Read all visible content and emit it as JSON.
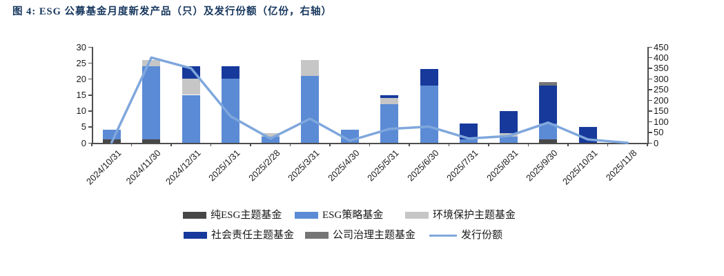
{
  "header": {
    "title": "图 4: ESG 公募基金月度新发产品（只）及发行份额（亿份，右轴）"
  },
  "chart_data": {
    "type": "bar",
    "subtype": "stacked-bars-with-line-overlay",
    "categories": [
      "2024/10/31",
      "2024/11/30",
      "2024/12/31",
      "2025/1/31",
      "2025/2/28",
      "2025/3/31",
      "2025/4/30",
      "2025/5/31",
      "2025/6/30",
      "2025/7/31",
      "2025/8/31",
      "2025/9/30",
      "2025/10/31",
      "2025/11/8"
    ],
    "series": [
      {
        "name": "纯ESG主题基金",
        "type": "bar",
        "axis": "left",
        "color": "#474747",
        "values": [
          1,
          1,
          0,
          0,
          0,
          0,
          0,
          0,
          0,
          0,
          0,
          1,
          0,
          0
        ]
      },
      {
        "name": "ESG策略基金",
        "type": "bar",
        "axis": "left",
        "color": "#5B8BD5",
        "values": [
          3,
          23,
          15,
          20,
          2,
          21,
          4,
          12,
          18,
          1,
          2,
          5,
          0,
          0
        ]
      },
      {
        "name": "环境保护主题基金",
        "type": "bar",
        "axis": "left",
        "color": "#C6C6C6",
        "values": [
          0,
          2,
          5,
          0,
          1,
          5,
          0,
          2,
          0,
          0,
          1,
          0,
          0,
          0
        ]
      },
      {
        "name": "社会责任主题基金",
        "type": "bar",
        "axis": "left",
        "color": "#16399B",
        "values": [
          0,
          0,
          4,
          4,
          0,
          0,
          0,
          1,
          5,
          5,
          7,
          12,
          5,
          0
        ]
      },
      {
        "name": "公司治理主题基金",
        "type": "bar",
        "axis": "left",
        "color": "#757575",
        "values": [
          0,
          0,
          0,
          0,
          0,
          0,
          0,
          0,
          0,
          0,
          0,
          1,
          0,
          0
        ]
      }
    ],
    "line_series": {
      "name": "发行份额",
      "type": "line",
      "axis": "right",
      "color": "#7FA7DC",
      "values": [
        2,
        400,
        350,
        124,
        20,
        113,
        10,
        65,
        76,
        20,
        32,
        95,
        16,
        0
      ]
    },
    "left_axis": {
      "min": 0,
      "max": 30,
      "step": 5,
      "ticks": [
        "0",
        "5",
        "10",
        "15",
        "20",
        "25",
        "30"
      ]
    },
    "right_axis": {
      "min": 0,
      "max": 450,
      "step": 50,
      "ticks": [
        "0",
        "50",
        "100",
        "150",
        "200",
        "250",
        "300",
        "350",
        "400",
        "450"
      ]
    },
    "grid": false,
    "legend_position": "bottom",
    "legend_rows": [
      [
        "纯ESG主题基金",
        "ESG策略基金",
        "环境保护主题基金"
      ],
      [
        "社会责任主题基金",
        "公司治理主题基金",
        "发行份额"
      ]
    ]
  },
  "colors": {
    "title": "#17375E",
    "axis_line": "#4D4D4D",
    "axis_text": "#1a1a1a"
  }
}
